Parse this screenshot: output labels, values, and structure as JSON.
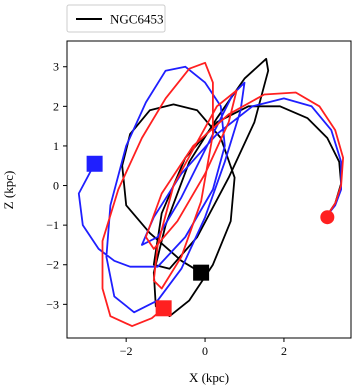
{
  "chart_data": {
    "type": "line",
    "title": "",
    "xlabel": "X (kpc)",
    "ylabel": "Z (kpc)",
    "xlim": [
      -3.5,
      3.7
    ],
    "ylim": [
      -3.85,
      3.65
    ],
    "xticks": [
      -2,
      0,
      2
    ],
    "yticks": [
      -3,
      -2,
      -1,
      0,
      1,
      2,
      3
    ],
    "xtick_labels": [
      "−2",
      "0",
      "2"
    ],
    "ytick_labels": [
      "−3",
      "−2",
      "−1",
      "0",
      "1",
      "2",
      "3"
    ],
    "grid": false,
    "legend": {
      "placement": "top-left, outside plot area",
      "entries": [
        {
          "label": "NGC6453",
          "color": "#000000"
        }
      ]
    },
    "series": [
      {
        "name": "NGC6453",
        "color": "#000000",
        "points": [
          [
            -0.1,
            -2.2
          ],
          [
            -0.6,
            -1.9
          ],
          [
            -1.4,
            -1.2
          ],
          [
            -2.0,
            -0.5
          ],
          [
            -2.1,
            0.5
          ],
          [
            -1.9,
            1.3
          ],
          [
            -1.4,
            1.9
          ],
          [
            -0.8,
            2.05
          ],
          [
            -0.2,
            1.9
          ],
          [
            0.4,
            1.2
          ],
          [
            0.75,
            0.2
          ],
          [
            0.65,
            -0.9
          ],
          [
            0.2,
            -2.0
          ],
          [
            -0.4,
            -2.9
          ],
          [
            -0.9,
            -3.3
          ],
          [
            -1.25,
            -3.05
          ],
          [
            -1.3,
            -2.2
          ],
          [
            -1.0,
            -1.0
          ],
          [
            -0.4,
            0.6
          ],
          [
            0.3,
            1.7
          ],
          [
            1.0,
            2.7
          ],
          [
            1.55,
            3.2
          ],
          [
            1.6,
            2.9
          ],
          [
            1.25,
            1.6
          ],
          [
            0.6,
            0.2
          ],
          [
            -0.2,
            -1.3
          ],
          [
            -0.9,
            -2.1
          ],
          [
            -1.3,
            -2.0
          ],
          [
            -1.1,
            -0.7
          ],
          [
            -0.5,
            0.7
          ],
          [
            0.3,
            1.6
          ],
          [
            1.1,
            2.0
          ],
          [
            1.9,
            2.0
          ],
          [
            2.6,
            1.7
          ],
          [
            3.1,
            1.2
          ],
          [
            3.4,
            0.6
          ],
          [
            3.45,
            0.05
          ],
          [
            3.3,
            -0.45
          ],
          [
            3.1,
            -0.75
          ]
        ]
      },
      {
        "name": "",
        "color": "#1f1fff",
        "points": [
          [
            -2.8,
            0.55
          ],
          [
            -3.2,
            -0.2
          ],
          [
            -3.1,
            -1.0
          ],
          [
            -2.7,
            -1.6
          ],
          [
            -2.3,
            -1.9
          ],
          [
            -1.9,
            -2.05
          ],
          [
            -1.2,
            -2.05
          ],
          [
            -0.5,
            -1.3
          ],
          [
            0.2,
            -0.1
          ],
          [
            0.5,
            1.0
          ],
          [
            0.4,
            2.0
          ],
          [
            0.0,
            2.6
          ],
          [
            -0.5,
            3.0
          ],
          [
            -1.0,
            2.9
          ],
          [
            -1.5,
            2.1
          ],
          [
            -2.0,
            1.0
          ],
          [
            -2.4,
            -0.5
          ],
          [
            -2.5,
            -1.8
          ],
          [
            -2.3,
            -2.8
          ],
          [
            -1.8,
            -3.2
          ],
          [
            -1.2,
            -2.9
          ],
          [
            -0.6,
            -2.1
          ],
          [
            0.0,
            -0.8
          ],
          [
            0.5,
            0.6
          ],
          [
            0.9,
            1.9
          ],
          [
            1.0,
            2.6
          ],
          [
            0.7,
            2.3
          ],
          [
            0.1,
            1.1
          ],
          [
            -0.6,
            -0.3
          ],
          [
            -1.2,
            -1.3
          ],
          [
            -1.6,
            -1.5
          ],
          [
            -1.3,
            -0.8
          ],
          [
            -0.6,
            0.3
          ],
          [
            0.3,
            1.3
          ],
          [
            1.2,
            2.0
          ],
          [
            2.0,
            2.2
          ],
          [
            2.7,
            2.0
          ],
          [
            3.2,
            1.4
          ],
          [
            3.45,
            0.6
          ],
          [
            3.45,
            -0.1
          ],
          [
            3.3,
            -0.5
          ],
          [
            3.1,
            -0.75
          ]
        ]
      },
      {
        "name": "",
        "color": "#ff2020",
        "points": [
          [
            -1.05,
            -3.1
          ],
          [
            -1.35,
            -3.35
          ],
          [
            -1.85,
            -3.55
          ],
          [
            -2.4,
            -3.3
          ],
          [
            -2.6,
            -2.6
          ],
          [
            -2.6,
            -1.4
          ],
          [
            -2.2,
            -0.1
          ],
          [
            -1.6,
            1.2
          ],
          [
            -1.0,
            2.2
          ],
          [
            -0.4,
            2.95
          ],
          [
            0.0,
            3.1
          ],
          [
            0.2,
            2.6
          ],
          [
            0.2,
            1.3
          ],
          [
            -0.1,
            -0.4
          ],
          [
            -0.6,
            -1.8
          ],
          [
            -1.1,
            -2.6
          ],
          [
            -1.3,
            -2.4
          ],
          [
            -1.2,
            -1.5
          ],
          [
            -0.8,
            0.0
          ],
          [
            -0.2,
            1.1
          ],
          [
            0.3,
            2.0
          ],
          [
            0.8,
            2.4
          ],
          [
            0.6,
            1.6
          ],
          [
            0.0,
            0.3
          ],
          [
            -0.7,
            -0.9
          ],
          [
            -1.3,
            -1.6
          ],
          [
            -1.5,
            -1.3
          ],
          [
            -1.1,
            -0.2
          ],
          [
            -0.3,
            1.0
          ],
          [
            0.6,
            1.8
          ],
          [
            1.5,
            2.3
          ],
          [
            2.3,
            2.35
          ],
          [
            2.9,
            2.0
          ],
          [
            3.3,
            1.4
          ],
          [
            3.5,
            0.7
          ],
          [
            3.45,
            0.0
          ],
          [
            3.3,
            -0.45
          ],
          [
            3.1,
            -0.75
          ]
        ]
      }
    ],
    "markers": [
      {
        "series": "NGC6453",
        "shape": "square",
        "color": "#000000",
        "x": -0.1,
        "y": -2.2
      },
      {
        "series": "",
        "shape": "square",
        "color": "#1f1fff",
        "x": -2.8,
        "y": 0.55
      },
      {
        "series": "",
        "shape": "square",
        "color": "#ff2020",
        "x": -1.05,
        "y": -3.1
      },
      {
        "series": "",
        "shape": "circle",
        "color": "#ff2020",
        "x": 3.1,
        "y": -0.8
      }
    ]
  }
}
